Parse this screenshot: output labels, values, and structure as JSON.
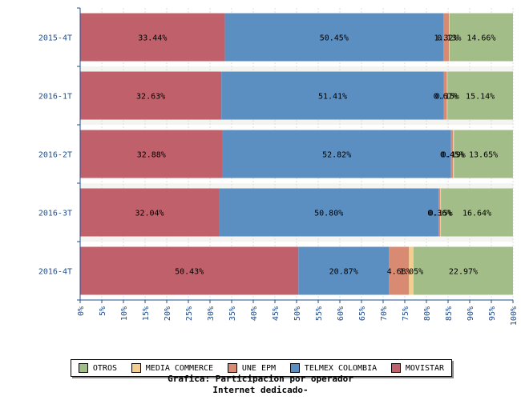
{
  "chart_data": {
    "type": "bar",
    "orientation": "horizontal",
    "stacked": true,
    "title": "Grafica: Participacion por operador",
    "subtitle": "Internet dedicado-",
    "categories": [
      "2015-4T",
      "2016-1T",
      "2016-2T",
      "2016-3T",
      "2016-4T"
    ],
    "xlim": [
      0,
      100
    ],
    "xticks": [
      "0%",
      "5%",
      "10%",
      "15%",
      "20%",
      "25%",
      "30%",
      "35%",
      "40%",
      "45%",
      "50%",
      "55%",
      "60%",
      "65%",
      "70%",
      "75%",
      "80%",
      "85%",
      "90%",
      "95%",
      "100%"
    ],
    "legend_position": "bottom",
    "grid": true,
    "series": [
      {
        "name": "MOVISTAR",
        "color": "#c0606a",
        "values": [
          33.44,
          32.63,
          32.88,
          32.04,
          50.43
        ],
        "labels": [
          "33.44%",
          "32.63%",
          "32.88%",
          "32.04%",
          "50.43%"
        ]
      },
      {
        "name": "TELMEX COLOMBIA",
        "color": "#5b8fc2",
        "values": [
          50.45,
          51.41,
          52.82,
          50.8,
          20.87
        ],
        "labels": [
          "50.45%",
          "51.41%",
          "52.82%",
          "50.80%",
          "20.87%"
        ]
      },
      {
        "name": "UNE EPM",
        "color": "#d98a72",
        "values": [
          1.32,
          0.67,
          0.45,
          0.36,
          4.68
        ],
        "labels": [
          "1.32%",
          "0.67%",
          "0.45%",
          "0.36%",
          "4.68%"
        ]
      },
      {
        "name": "MEDIA COMMERCE",
        "color": "#f3ce8e",
        "values": [
          0.13,
          0.15,
          0.19,
          0.15,
          1.05
        ],
        "labels": [
          "0.13%",
          "0.15%",
          "0.19%",
          "0.15%",
          "1.05%"
        ]
      },
      {
        "name": "OTROS",
        "color": "#a3bd88",
        "values": [
          14.66,
          15.14,
          13.65,
          16.64,
          22.97
        ],
        "labels": [
          "14.66%",
          "15.14%",
          "13.65%",
          "16.64%",
          "22.97%"
        ]
      }
    ],
    "legend_order": [
      "OTROS",
      "MEDIA COMMERCE",
      "UNE EPM",
      "TELMEX COLOMBIA",
      "MOVISTAR"
    ]
  }
}
